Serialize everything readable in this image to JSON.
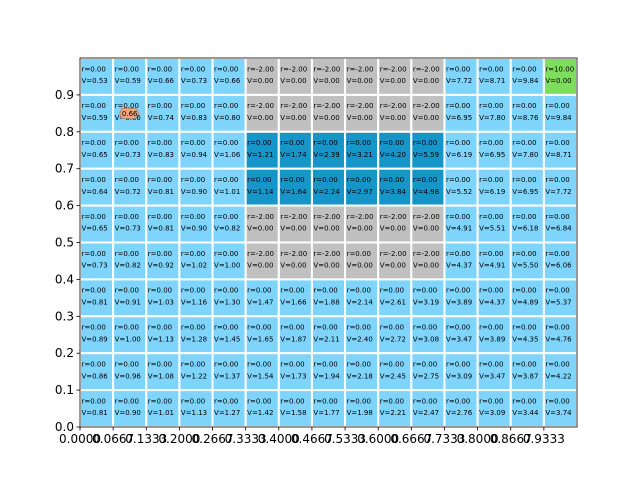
{
  "chart_data": {
    "type": "heatmap",
    "title": "",
    "xlabel": "",
    "ylabel": "",
    "grid": false,
    "cols": 15,
    "rows": 10,
    "xlim": [
      0,
      1
    ],
    "ylim": [
      0,
      1
    ],
    "x_tick_labels": [
      "0.0000",
      "0.0667",
      "0.1333",
      "0.2000",
      "0.2667",
      "0.3333",
      "0.4000",
      "0.4667",
      "0.5333",
      "0.6000",
      "0.6667",
      "0.7333",
      "0.8000",
      "0.8667",
      "0.9333"
    ],
    "y_ticks": [
      0.0,
      0.1,
      0.2,
      0.3,
      0.4,
      0.5,
      0.6,
      0.7,
      0.8,
      0.9
    ],
    "y_tick_labels": [
      "0.0",
      "0.1",
      "0.2",
      "0.3",
      "0.4",
      "0.5",
      "0.6",
      "0.7",
      "0.8",
      "0.9"
    ],
    "colors": {
      "normal": "#7fd4fc",
      "obstacle": "#c0c0c0",
      "visited": "#1695c9",
      "goal": "#7edc5f",
      "grid_line": "#ffffff",
      "agent": "#f2a57a"
    },
    "agent": {
      "row": 1,
      "col": 1,
      "label": "0.66"
    },
    "cells": [
      {
        "r": [
          "0.00",
          "0.00",
          "0.00",
          "0.00",
          "0.00",
          "-2.00",
          "-2.00",
          "-2.00",
          "-2.00",
          "-2.00",
          "-2.00",
          "0.00",
          "0.00",
          "0.00",
          "10.00"
        ],
        "v": [
          "0.53",
          "0.59",
          "0.66",
          "0.73",
          "0.66",
          "0.00",
          "0.00",
          "0.00",
          "0.00",
          "0.00",
          "0.00",
          "7.72",
          "8.71",
          "9.84",
          "0.00"
        ],
        "t": [
          "n",
          "n",
          "n",
          "n",
          "n",
          "o",
          "o",
          "o",
          "o",
          "o",
          "o",
          "n",
          "n",
          "n",
          "g"
        ]
      },
      {
        "r": [
          "0.00",
          "0.00",
          "0.00",
          "0.00",
          "0.00",
          "-2.00",
          "-2.00",
          "-2.00",
          "-2.00",
          "-2.00",
          "-2.00",
          "0.00",
          "0.00",
          "0.00",
          "0.00"
        ],
        "v": [
          "0.59",
          "0.66",
          "0.74",
          "0.83",
          "0.80",
          "0.00",
          "0.00",
          "0.00",
          "0.00",
          "0.00",
          "0.00",
          "6.95",
          "7.80",
          "8.76",
          "9.84"
        ],
        "t": [
          "n",
          "n",
          "n",
          "n",
          "n",
          "o",
          "o",
          "o",
          "o",
          "o",
          "o",
          "n",
          "n",
          "n",
          "n"
        ]
      },
      {
        "r": [
          "0.00",
          "0.00",
          "0.00",
          "0.00",
          "0.00",
          "0.00",
          "0.00",
          "0.00",
          "0.00",
          "0.00",
          "0.00",
          "0.00",
          "0.00",
          "0.00",
          "0.00"
        ],
        "v": [
          "0.65",
          "0.73",
          "0.83",
          "0.94",
          "1.06",
          "1.21",
          "1.74",
          "2.39",
          "3.21",
          "4.20",
          "5.59",
          "6.19",
          "6.95",
          "7.80",
          "8.71"
        ],
        "t": [
          "n",
          "n",
          "n",
          "n",
          "n",
          "p",
          "p",
          "p",
          "p",
          "p",
          "p",
          "n",
          "n",
          "n",
          "n"
        ]
      },
      {
        "r": [
          "0.00",
          "0.00",
          "0.00",
          "0.00",
          "0.00",
          "0.00",
          "0.00",
          "0.00",
          "0.00",
          "0.00",
          "0.00",
          "0.00",
          "0.00",
          "0.00",
          "0.00"
        ],
        "v": [
          "0.64",
          "0.72",
          "0.81",
          "0.90",
          "1.01",
          "1.14",
          "1.64",
          "2.24",
          "2.97",
          "3.84",
          "4.98",
          "5.52",
          "6.19",
          "6.95",
          "7.72"
        ],
        "t": [
          "n",
          "n",
          "n",
          "n",
          "n",
          "p",
          "p",
          "p",
          "p",
          "p",
          "p",
          "n",
          "n",
          "n",
          "n"
        ]
      },
      {
        "r": [
          "0.00",
          "0.00",
          "0.00",
          "0.00",
          "0.00",
          "-2.00",
          "-2.00",
          "-2.00",
          "-2.00",
          "-2.00",
          "-2.00",
          "0.00",
          "0.00",
          "0.00",
          "0.00"
        ],
        "v": [
          "0.65",
          "0.73",
          "0.81",
          "0.90",
          "0.82",
          "0.00",
          "0.00",
          "0.00",
          "0.00",
          "0.00",
          "0.00",
          "4.91",
          "5.51",
          "6.18",
          "6.84"
        ],
        "t": [
          "n",
          "n",
          "n",
          "n",
          "n",
          "o",
          "o",
          "o",
          "o",
          "o",
          "o",
          "n",
          "n",
          "n",
          "n"
        ]
      },
      {
        "r": [
          "0.00",
          "0.00",
          "0.00",
          "0.00",
          "0.00",
          "-2.00",
          "-2.00",
          "-2.00",
          "0.00",
          "-2.00",
          "-2.00",
          "0.00",
          "0.00",
          "0.00",
          "0.00"
        ],
        "v": [
          "0.73",
          "0.82",
          "0.92",
          "1.02",
          "1.00",
          "0.00",
          "0.00",
          "0.00",
          "0.00",
          "0.00",
          "0.00",
          "4.37",
          "4.91",
          "5.50",
          "6.06"
        ],
        "t": [
          "n",
          "n",
          "n",
          "n",
          "n",
          "o",
          "o",
          "o",
          "o",
          "o",
          "o",
          "n",
          "n",
          "n",
          "n"
        ]
      },
      {
        "r": [
          "0.00",
          "0.00",
          "0.00",
          "0.00",
          "0.00",
          "0.00",
          "0.00",
          "0.00",
          "0.00",
          "0.00",
          "0.00",
          "0.00",
          "0.00",
          "0.00",
          "0.00"
        ],
        "v": [
          "0.81",
          "0.91",
          "1.03",
          "1.16",
          "1.30",
          "1.47",
          "1.66",
          "1.88",
          "2.14",
          "2.61",
          "3.19",
          "3.89",
          "4.37",
          "4.89",
          "5.37"
        ],
        "t": [
          "n",
          "n",
          "n",
          "n",
          "n",
          "n",
          "n",
          "n",
          "n",
          "n",
          "n",
          "n",
          "n",
          "n",
          "n"
        ]
      },
      {
        "r": [
          "0.00",
          "0.00",
          "0.00",
          "0.00",
          "0.00",
          "0.00",
          "0.00",
          "0.00",
          "0.00",
          "0.00",
          "0.00",
          "0.00",
          "0.00",
          "0.00",
          "0.00"
        ],
        "v": [
          "0.89",
          "1.00",
          "1.13",
          "1.28",
          "1.45",
          "1.65",
          "1.87",
          "2.11",
          "2.40",
          "2.72",
          "3.08",
          "3.47",
          "3.89",
          "4.35",
          "4.76"
        ],
        "t": [
          "n",
          "n",
          "n",
          "n",
          "n",
          "n",
          "n",
          "n",
          "n",
          "n",
          "n",
          "n",
          "n",
          "n",
          "n"
        ]
      },
      {
        "r": [
          "0.00",
          "0.00",
          "0.00",
          "0.00",
          "0.00",
          "0.00",
          "0.00",
          "0.00",
          "0.00",
          "0.00",
          "0.00",
          "0.00",
          "0.00",
          "0.00",
          "0.00"
        ],
        "v": [
          "0.86",
          "0.96",
          "1.08",
          "1.22",
          "1.37",
          "1.54",
          "1.73",
          "1.94",
          "2.18",
          "2.45",
          "2.75",
          "3.09",
          "3.47",
          "3.87",
          "4.22"
        ],
        "t": [
          "n",
          "n",
          "n",
          "n",
          "n",
          "n",
          "n",
          "n",
          "n",
          "n",
          "n",
          "n",
          "n",
          "n",
          "n"
        ]
      },
      {
        "r": [
          "0.00",
          "0.00",
          "0.00",
          "0.00",
          "0.00",
          "0.00",
          "0.00",
          "0.00",
          "0.00",
          "0.00",
          "0.00",
          "0.00",
          "0.00",
          "0.00",
          "0.00"
        ],
        "v": [
          "0.81",
          "0.90",
          "1.01",
          "1.13",
          "1.27",
          "1.42",
          "1.58",
          "1.77",
          "1.98",
          "2.21",
          "2.47",
          "2.76",
          "3.09",
          "3.44",
          "3.74"
        ],
        "t": [
          "n",
          "n",
          "n",
          "n",
          "n",
          "n",
          "n",
          "n",
          "n",
          "n",
          "n",
          "n",
          "n",
          "n",
          "n"
        ]
      }
    ]
  }
}
